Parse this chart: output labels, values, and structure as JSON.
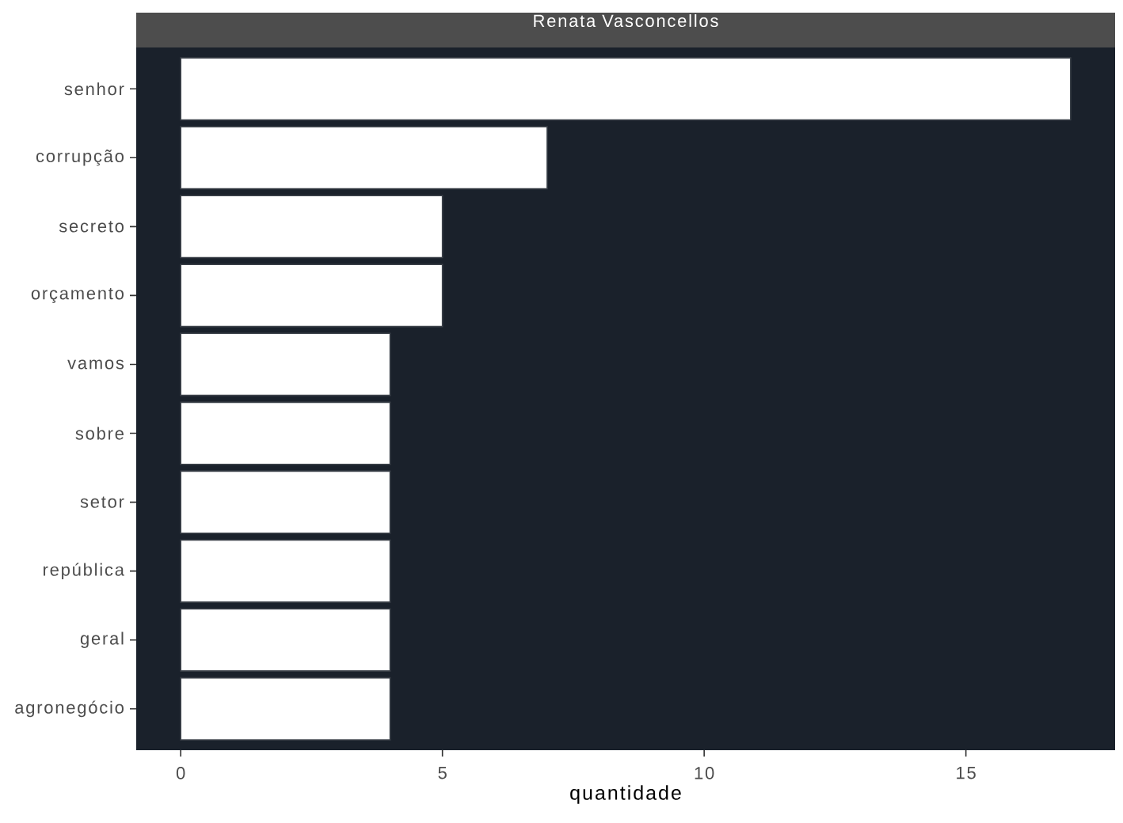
{
  "chart_data": {
    "type": "bar",
    "orientation": "horizontal",
    "title": "Renata Vasconcellos",
    "categories": [
      "senhor",
      "corrupção",
      "secreto",
      "orçamento",
      "vamos",
      "sobre",
      "setor",
      "república",
      "geral",
      "agronegócio"
    ],
    "values": [
      17,
      7,
      5,
      5,
      4,
      4,
      4,
      4,
      4,
      4
    ],
    "color": "#ffffff",
    "xlabel": "quantidade",
    "xlim": [
      -0.85,
      17.85
    ],
    "xticks": [
      0,
      5,
      10,
      15
    ]
  }
}
